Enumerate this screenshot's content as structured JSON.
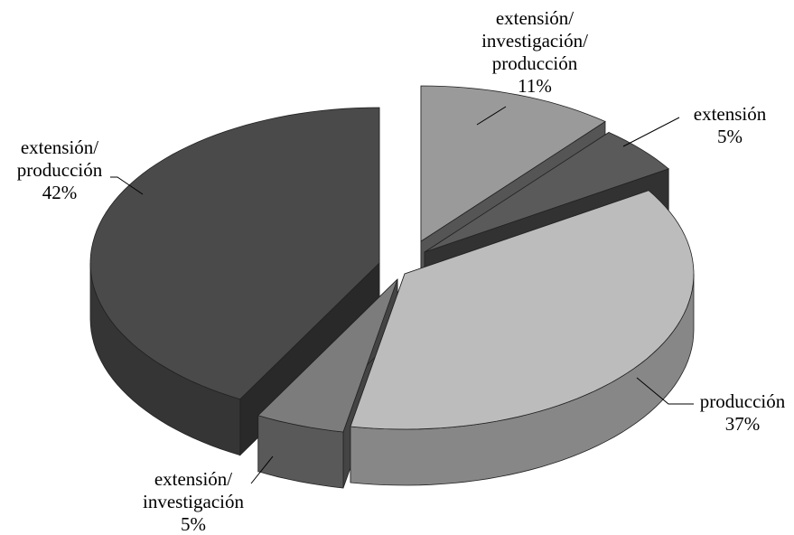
{
  "chart_data": {
    "type": "pie",
    "style": "3d-exploded",
    "title": "",
    "legend": "none",
    "slices": [
      {
        "name": "extensión/ investigación/ producción",
        "label_lines": [
          "extensión/",
          "investigación/",
          "producción"
        ],
        "value": 11,
        "value_label": "11%",
        "color": "#9a9a9a"
      },
      {
        "name": "extensión",
        "label_lines": [
          "extensión"
        ],
        "value": 5,
        "value_label": "5%",
        "color": "#5a5a5a"
      },
      {
        "name": "producción",
        "label_lines": [
          "producción"
        ],
        "value": 37,
        "value_label": "37%",
        "color": "#bcbcbc"
      },
      {
        "name": "extensión/ investigación",
        "label_lines": [
          "extensión/",
          "investigación"
        ],
        "value": 5,
        "value_label": "5%",
        "color": "#7c7c7c"
      },
      {
        "name": "extensión/ producción",
        "label_lines": [
          "extensión/",
          "producción"
        ],
        "value": 42,
        "value_label": "42%",
        "color": "#4a4a4a"
      }
    ]
  }
}
